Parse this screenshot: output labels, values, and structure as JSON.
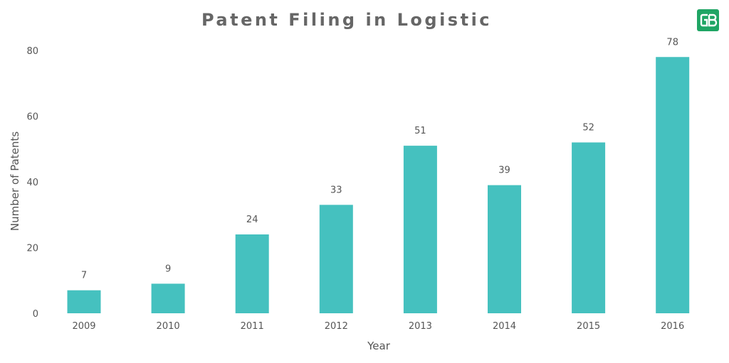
{
  "logo_text": "GB",
  "chart_data": {
    "type": "bar",
    "title": "Patent Filing in Logistic",
    "xlabel": "Year",
    "ylabel": "Number of Patents",
    "categories": [
      "2009",
      "2010",
      "2011",
      "2012",
      "2013",
      "2014",
      "2015",
      "2016"
    ],
    "values": [
      7,
      9,
      24,
      33,
      51,
      39,
      52,
      78
    ],
    "ylim": [
      0,
      80
    ],
    "yticks": [
      "0",
      "20",
      "40",
      "60",
      "80"
    ],
    "grid": false,
    "legend": "none",
    "bar_color": "#45c1bf"
  }
}
